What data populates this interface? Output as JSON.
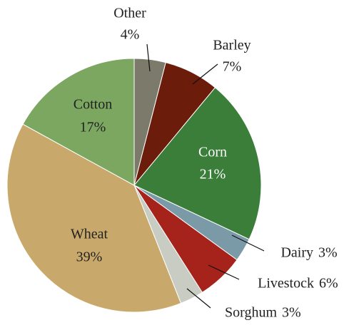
{
  "chart_data": {
    "type": "pie",
    "categories": [
      "Other",
      "Barley",
      "Corn",
      "Dairy",
      "Livestock",
      "Sorghum",
      "Wheat",
      "Cotton"
    ],
    "values": [
      4,
      7,
      21,
      3,
      6,
      3,
      39,
      17
    ],
    "value_labels": [
      "4%",
      "7%",
      "21%",
      "3%",
      "6%",
      "3%",
      "39%",
      "17%"
    ],
    "colors": [
      "#7b7a6b",
      "#6b1c0b",
      "#3b7e3a",
      "#7b9aa8",
      "#a5231b",
      "#c8ccc3",
      "#c9a96b",
      "#7ba761"
    ]
  }
}
